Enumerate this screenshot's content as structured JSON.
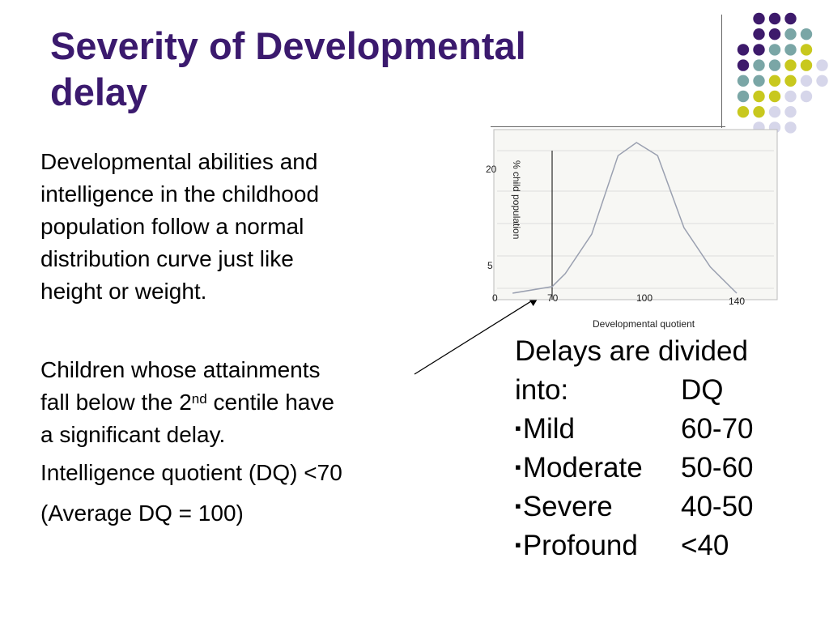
{
  "slide": {
    "title_line1": "Severity of Developmental",
    "title_line2": "delay",
    "para1_lines": [
      "Developmental abilities and",
      "intelligence in the childhood",
      "population follow a normal",
      "distribution curve just like",
      "height or weight."
    ],
    "para2_line1": "Children whose attainments",
    "para2_line2_pre": "fall below the 2",
    "para2_line2_sup": "nd",
    "para2_line2_post": " centile have",
    "para2_line3": "a significant delay.",
    "para3": "Intelligence quotient (DQ) <70",
    "para4": "(Average DQ = 100)"
  },
  "delays": {
    "heading_line1": "Delays are divided",
    "heading_line2": "into:",
    "heading_col2": "DQ",
    "bullet_symbol": "▪",
    "items": [
      {
        "label": "Mild",
        "range": "60-70"
      },
      {
        "label": "Moderate",
        "range": "50-60"
      },
      {
        "label": "Severe",
        "range": "40-50"
      },
      {
        "label": "Profound",
        "range": "<40"
      }
    ]
  },
  "colors": {
    "title": "#3b1a6e",
    "dot_purple": "#3d1a6b",
    "dot_teal": "#7aa6a6",
    "dot_yellow": "#c8c81e",
    "dot_lavender": "#d6d6ea",
    "curve": "#9aa0b0"
  },
  "chart_data": {
    "type": "line",
    "ylabel": "% child population",
    "xlabel": "Developmental quotient",
    "x_tick_labels": [
      "0",
      "70",
      "100",
      "140"
    ],
    "y_tick_labels": [
      "0",
      "5",
      "20"
    ],
    "series": [
      {
        "x": [
          55,
          70,
          75,
          85,
          95,
          102,
          110,
          120,
          130,
          140
        ],
        "y": [
          0,
          1,
          3,
          9,
          21,
          23,
          21,
          10,
          4,
          0
        ]
      }
    ]
  }
}
